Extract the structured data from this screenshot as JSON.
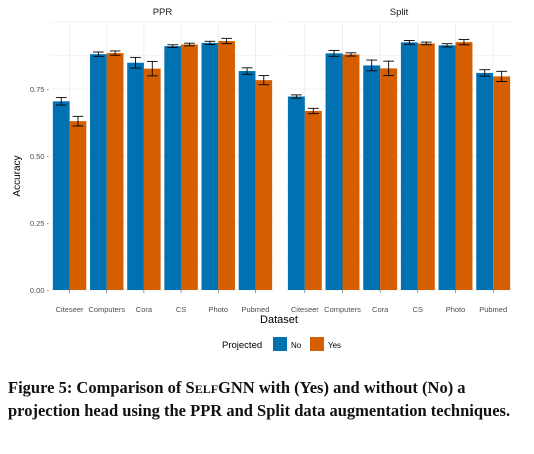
{
  "chart_data": {
    "type": "bar",
    "layout": "faceted",
    "xlabel": "Dataset",
    "ylabel": "Accuracy",
    "ylim": [
      0,
      1
    ],
    "yticks": [
      0,
      0.25,
      0.5,
      0.75
    ],
    "ytick_labels": [
      "0.00 -",
      "0.25 -",
      "0.50 -",
      "0.75 -"
    ],
    "categories": [
      "Citeseer",
      "Computers",
      "Cora",
      "CS",
      "Photo",
      "Pubmed"
    ],
    "legend": {
      "title": "Projected",
      "position": "bottom",
      "entries": [
        {
          "label": "No",
          "color": "#0072B2"
        },
        {
          "label": "Yes",
          "color": "#D55E00"
        }
      ]
    },
    "panels": [
      {
        "title": "PPR",
        "series": [
          {
            "name": "No",
            "values": [
              0.704,
              0.88,
              0.848,
              0.91,
              0.922,
              0.817
            ],
            "errors": [
              0.014,
              0.008,
              0.02,
              0.005,
              0.006,
              0.012
            ]
          },
          {
            "name": "Yes",
            "values": [
              0.63,
              0.884,
              0.826,
              0.916,
              0.929,
              0.783
            ],
            "errors": [
              0.018,
              0.008,
              0.027,
              0.005,
              0.01,
              0.017
            ]
          }
        ]
      },
      {
        "title": "Split",
        "series": [
          {
            "name": "No",
            "values": [
              0.722,
              0.883,
              0.838,
              0.924,
              0.913,
              0.81
            ],
            "errors": [
              0.006,
              0.011,
              0.02,
              0.007,
              0.006,
              0.012
            ]
          },
          {
            "name": "Yes",
            "values": [
              0.668,
              0.879,
              0.827,
              0.92,
              0.925,
              0.797
            ],
            "errors": [
              0.01,
              0.006,
              0.027,
              0.005,
              0.01,
              0.019
            ]
          }
        ]
      }
    ]
  },
  "caption": {
    "prefix": "Figure 5: Comparison of ",
    "name": "SelfGNN",
    "suffix": " with (Yes) and without (No) a projection head using the PPR and Split data augmentation techniques."
  }
}
